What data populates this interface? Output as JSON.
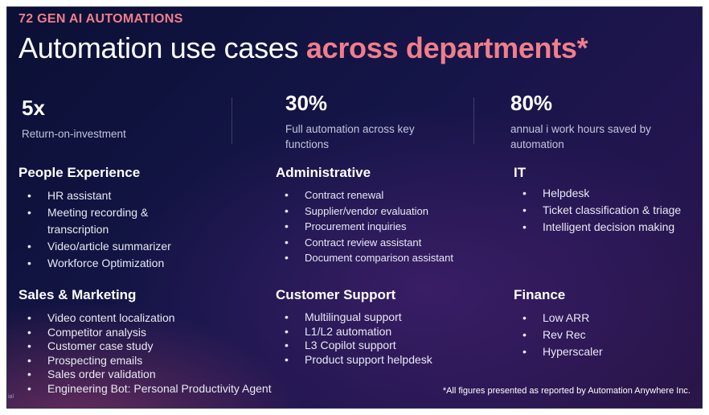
{
  "eyebrow": "72 GEN AI AUTOMATIONS",
  "headline": {
    "plain": "Automation use cases ",
    "accent": "across departments*"
  },
  "stats": [
    {
      "value": "5x",
      "label": "Return-on-investment"
    },
    {
      "value": "30%",
      "label": "Full automation across key functions"
    },
    {
      "value": "80%",
      "label": "annual i  work hours saved by automation"
    }
  ],
  "sections": {
    "people_experience": {
      "title": "People Experience",
      "items": [
        "HR assistant",
        "Meeting recording & transcription",
        "Video/article summarizer",
        "Workforce Optimization"
      ]
    },
    "administrative": {
      "title": "Administrative",
      "items": [
        "Contract renewal",
        "Supplier/vendor evaluation",
        "Procurement inquiries",
        "Contract review assistant",
        "Document comparison assistant"
      ]
    },
    "it": {
      "title": "IT",
      "items": [
        "Helpdesk",
        "Ticket classification & triage",
        "Intelligent decision making"
      ]
    },
    "sales_marketing": {
      "title": "Sales & Marketing",
      "items": [
        "Video content localization",
        "Competitor analysis",
        "Customer case study",
        "Prospecting emails",
        "Sales order validation",
        "Engineering Bot: Personal Productivity Agent"
      ]
    },
    "customer_support": {
      "title": "Customer Support",
      "items": [
        "Multilingual support",
        "L1/L2 automation",
        "L3 Copilot support",
        "Product support helpdesk"
      ]
    },
    "finance": {
      "title": "Finance",
      "items": [
        "Low ARR",
        "Rev Rec",
        "Hyperscaler"
      ]
    }
  },
  "bullet": "•",
  "footnote": "*All figures presented as reported by Automation Anywhere Inc.",
  "edge_text": "ial"
}
